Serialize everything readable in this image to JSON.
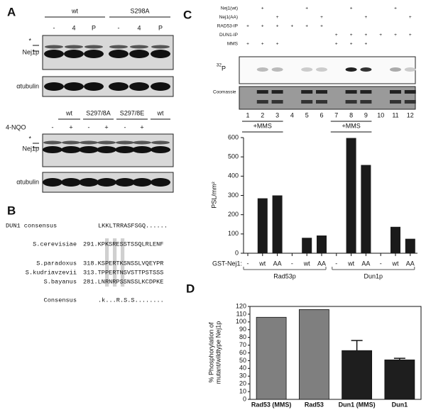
{
  "panel_a": {
    "label": "A",
    "top": {
      "groups": [
        "wt",
        "S298A"
      ],
      "lanes": [
        "-",
        "4",
        "P",
        "-",
        "4",
        "P"
      ],
      "rows": [
        "*",
        "Nej1p",
        "αtubulin"
      ]
    },
    "bottom": {
      "treatment": "4-NQO",
      "groups": [
        "wt",
        "S297/8A",
        "S297/8E",
        "wt"
      ],
      "lanes": [
        "-",
        "+",
        "-",
        "+",
        "-",
        "+"
      ],
      "rows": [
        "*",
        "Nej1p",
        "αtubulin"
      ]
    }
  },
  "panel_b": {
    "label": "B",
    "rows": [
      {
        "name": "DUN1 consensus",
        "sequence": "LKKLTRRASFSGQ......"
      },
      {
        "name": "S.cerevisiae",
        "sequence": "291.KPKSRESSTSSQLRLENF"
      },
      {
        "name": "S.paradoxus",
        "sequence": "318.KSPERTKSNSSLVQEYPR"
      },
      {
        "name": "S.kudriavzevii",
        "sequence": "313.TPPERTNSVSTTPSTSSS"
      },
      {
        "name": "S.bayanus",
        "sequence": "281.LNRNRPSSNSSLKCDPKE"
      },
      {
        "name": "Consensus",
        "sequence": ".k...R.S.S........"
      }
    ]
  },
  "panel_c": {
    "label": "C",
    "conditions": [
      {
        "name": "Nej1(wt)",
        "lanes": [
          null,
          "+",
          null,
          null,
          "+",
          null,
          null,
          "+",
          null,
          null,
          "+",
          null
        ]
      },
      {
        "name": "Nej1(AA)",
        "lanes": [
          null,
          null,
          "+",
          null,
          null,
          "+",
          null,
          null,
          "+",
          null,
          null,
          "+"
        ]
      },
      {
        "name": "RAD53-IP",
        "lanes": [
          "+",
          "+",
          "+",
          "+",
          "+",
          "+",
          null,
          null,
          null,
          null,
          null,
          null
        ]
      },
      {
        "name": "DUN1-IP",
        "lanes": [
          null,
          null,
          null,
          null,
          null,
          null,
          "+",
          "+",
          "+",
          "+",
          "+",
          "+"
        ]
      },
      {
        "name": "MMS",
        "lanes": [
          "+",
          "+",
          "+",
          null,
          null,
          null,
          "+",
          "+",
          "+",
          null,
          null,
          null
        ]
      }
    ],
    "isotope": "32",
    "autorad": "P",
    "stain": "Coomassie",
    "lane_numbers": [
      1,
      2,
      3,
      4,
      5,
      6,
      7,
      8,
      9,
      10,
      11,
      12
    ],
    "mms_labels": [
      "+MMS",
      "+MMS"
    ],
    "groups": [
      "Rad53p",
      "Dun1p"
    ]
  },
  "panel_d": {
    "label": "D"
  },
  "chart_data": [
    {
      "type": "bar",
      "y_label": "PSL/mm²",
      "x_label": "GST-Nej1:",
      "categories": [
        "-",
        "wt",
        "AA",
        "-",
        "wt",
        "AA",
        "-",
        "wt",
        "AA",
        "-",
        "wt",
        "AA"
      ],
      "values": [
        0,
        285,
        300,
        0,
        80,
        92,
        0,
        598,
        458,
        0,
        137,
        75
      ],
      "color": "#1a1a1a",
      "ylim": [
        0,
        600
      ],
      "yticks": [
        0,
        100,
        200,
        300,
        400,
        500,
        600
      ]
    },
    {
      "type": "bar",
      "y_label": [
        "% Phosphorylation of",
        "mutant/wildtype Nej1p"
      ],
      "categories": [
        "Rad53 (MMS)",
        "Rad53",
        "Dun1 (MMS)",
        "Dun1"
      ],
      "values": [
        106,
        116,
        63,
        51
      ],
      "errors": [
        null,
        null,
        13,
        2
      ],
      "colors": [
        "#7f7f7f",
        "#7f7f7f",
        "#1e1e1e",
        "#1e1e1e"
      ],
      "ylim": [
        0,
        120
      ],
      "yticks": [
        0,
        10,
        20,
        30,
        40,
        50,
        60,
        70,
        80,
        90,
        100,
        110,
        120
      ]
    }
  ]
}
